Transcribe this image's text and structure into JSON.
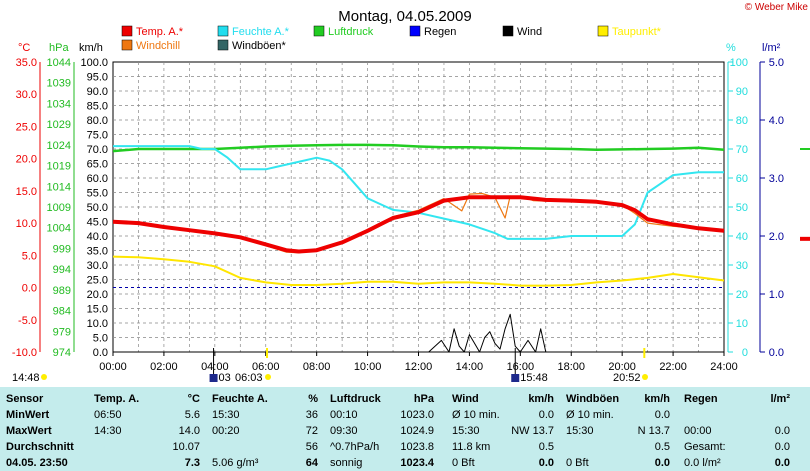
{
  "title": "Montag, 04.05.2009",
  "copyright": "© Weber Mike",
  "legend": [
    {
      "name": "Temp. A.*",
      "color": "#ee0000"
    },
    {
      "name": "Feuchte A.*",
      "color": "#22ddee"
    },
    {
      "name": "Luftdruck",
      "color": "#22cc22"
    },
    {
      "name": "Regen",
      "color": "#0000ff"
    },
    {
      "name": "Wind",
      "color": "#000000"
    },
    {
      "name": "Taupunkt*",
      "color": "#ffee00"
    },
    {
      "name": "Windchill",
      "color": "#ee7711"
    },
    {
      "name": "Windböen*",
      "color": "#336666"
    }
  ],
  "axes": {
    "temp": {
      "unit": "°C",
      "ticks": [
        "35.0",
        "30.0",
        "25.0",
        "20.0",
        "15.0",
        "10.0",
        "5.0",
        "0.0",
        "-5.0",
        "-10.0"
      ],
      "color": "#ee0000"
    },
    "pressure": {
      "unit": "hPa",
      "ticks": [
        "1044",
        "1039",
        "1034",
        "1029",
        "1024",
        "1019",
        "1014",
        "1009",
        "1004",
        "999",
        "994",
        "989",
        "984",
        "979",
        "974"
      ],
      "color": "#22bb22"
    },
    "wind": {
      "unit": "km/h",
      "ticks": [
        "100.0",
        "95.0",
        "90.0",
        "85.0",
        "80.0",
        "75.0",
        "70.0",
        "65.0",
        "60.0",
        "55.0",
        "50.0",
        "45.0",
        "40.0",
        "35.0",
        "30.0",
        "25.0",
        "20.0",
        "15.0",
        "10.0",
        "5.0",
        "0.0"
      ],
      "color": "#000000"
    },
    "humidity": {
      "unit": "%",
      "ticks": [
        "100",
        "90",
        "80",
        "70",
        "60",
        "50",
        "40",
        "30",
        "20",
        "10",
        "0"
      ],
      "color": "#22dddd"
    },
    "rain": {
      "unit": "l/m²",
      "ticks": [
        "5.0",
        "4.0",
        "3.0",
        "2.0",
        "1.0",
        "0.0"
      ],
      "color": "#000099"
    },
    "time": {
      "ticks": [
        "00:00",
        "02:00",
        "04:00",
        "06:00",
        "08:00",
        "10:00",
        "12:00",
        "14:00",
        "16:00",
        "18:00",
        "20:00",
        "22:00",
        "24:00"
      ]
    }
  },
  "events": {
    "left_time": "14:48",
    "moon": "03",
    "sunrise": "06:03",
    "moonset": "15:48",
    "sunset": "20:52"
  },
  "chart_data": {
    "type": "line",
    "title": "Montag, 04.05.2009",
    "xlabel": "",
    "xlim": [
      0,
      24
    ],
    "series": [
      {
        "name": "Temp. A.*",
        "axis": "°C",
        "x": [
          0,
          1,
          2,
          3,
          4,
          5,
          6,
          6.8,
          7.3,
          8,
          9,
          10,
          11,
          12,
          13,
          14,
          15,
          16,
          17,
          18,
          19,
          20,
          20.5,
          21,
          22,
          23,
          24
        ],
        "values": [
          10.2,
          10.0,
          9.4,
          8.9,
          8.4,
          7.8,
          6.7,
          5.8,
          5.6,
          5.8,
          7.0,
          8.8,
          10.8,
          11.7,
          13.5,
          14.0,
          14.0,
          14.0,
          13.6,
          13.5,
          13.3,
          12.8,
          12.0,
          10.6,
          9.8,
          9.2,
          8.8
        ]
      },
      {
        "name": "Windchill",
        "axis": "°C",
        "x": [
          0,
          1,
          2,
          3,
          4,
          5,
          6,
          6.8,
          7.3,
          8,
          9,
          10,
          11,
          12,
          13,
          13.7,
          14,
          14.5,
          15,
          15.4,
          15.6,
          15.8,
          16,
          16.5,
          17,
          18,
          19,
          20,
          20.5,
          21,
          22,
          23,
          24
        ],
        "values": [
          10.2,
          10.0,
          9.4,
          8.9,
          8.4,
          7.8,
          6.5,
          5.5,
          5.4,
          5.8,
          7.2,
          9.0,
          11.0,
          12.0,
          13.8,
          11.9,
          14.5,
          14.6,
          14.0,
          10.8,
          14.2,
          14.0,
          14.2,
          13.5,
          13.4,
          13.5,
          13.3,
          12.8,
          11.5,
          10.0,
          9.5,
          9.2,
          8.8
        ]
      },
      {
        "name": "Feuchte A.*",
        "axis": "%",
        "x": [
          0,
          1,
          2,
          3,
          3.5,
          4,
          4.5,
          5,
          5.5,
          6,
          6.5,
          7,
          7.5,
          8,
          8.5,
          9,
          9.5,
          10,
          10.5,
          11,
          12,
          13,
          14,
          15,
          15.5,
          16,
          17,
          18,
          19,
          20,
          20.5,
          21,
          21.5,
          22,
          23,
          24
        ],
        "values": [
          71,
          71,
          71,
          71,
          70,
          70,
          67,
          63,
          63,
          63,
          64,
          65,
          66,
          67,
          66,
          63,
          58,
          53,
          51,
          49,
          48,
          46,
          44,
          41,
          39,
          39,
          39,
          40,
          40,
          40,
          44,
          55,
          58,
          61,
          62,
          62
        ]
      },
      {
        "name": "Luftdruck",
        "axis": "hPa",
        "x": [
          0,
          1,
          2,
          3,
          4,
          5,
          6,
          7,
          8,
          9,
          10,
          11,
          12,
          13,
          14,
          15,
          16,
          17,
          18,
          19,
          20,
          21,
          22,
          23,
          24
        ],
        "values": [
          1022.5,
          1023.0,
          1023.0,
          1023.0,
          1023.0,
          1023.3,
          1023.6,
          1023.8,
          1023.9,
          1024.0,
          1024.0,
          1023.9,
          1023.6,
          1023.4,
          1023.4,
          1023.3,
          1023.2,
          1023.1,
          1023.0,
          1022.8,
          1022.9,
          1023.0,
          1023.1,
          1023.3,
          1022.8
        ]
      },
      {
        "name": "Taupunkt*",
        "axis": "°C",
        "x": [
          0,
          1,
          2,
          3,
          4,
          5,
          6,
          7,
          8,
          9,
          10,
          11,
          12,
          13,
          14,
          15,
          16,
          17,
          18,
          19,
          20,
          21,
          22,
          23,
          24
        ],
        "values": [
          4.8,
          4.7,
          4.4,
          4.0,
          3.3,
          1.5,
          0.8,
          0.4,
          0.4,
          0.6,
          0.9,
          0.9,
          0.6,
          0.8,
          0.8,
          0.6,
          0.3,
          0.3,
          0.4,
          0.8,
          1.1,
          1.5,
          2.1,
          1.6,
          1.1
        ]
      },
      {
        "name": "Wind",
        "axis": "km/h",
        "x": [
          0,
          12.4,
          12.9,
          13.2,
          13.4,
          13.6,
          13.8,
          14.0,
          14.2,
          14.4,
          14.6,
          14.8,
          15.0,
          15.2,
          15.4,
          15.6,
          15.8,
          16.0,
          16.3,
          16.6,
          16.8,
          17.0,
          24
        ],
        "values": [
          0,
          0,
          4,
          0,
          8,
          2,
          0,
          6,
          3,
          0,
          5,
          7,
          3,
          1,
          8,
          13,
          2,
          0,
          4,
          0,
          8,
          0,
          0
        ]
      },
      {
        "name": "Regen",
        "axis": "l/m²",
        "x": [
          0,
          24
        ],
        "values": [
          0,
          0
        ]
      }
    ],
    "reference_line": {
      "axis": "°C",
      "value": 0.0
    },
    "ylim_temp": [
      -10,
      35
    ],
    "ylim_humidity": [
      0,
      100
    ],
    "ylim_pressure": [
      974,
      1044
    ],
    "ylim_wind": [
      0,
      100
    ],
    "ylim_rain": [
      0,
      5
    ],
    "grid": true,
    "legend_position": "top"
  },
  "table": {
    "headers": [
      "Sensor",
      "Temp. A.",
      "°C",
      "Feuchte A.",
      "%",
      "Luftdruck",
      "hPa",
      "Wind",
      "km/h",
      "Windböen",
      "km/h",
      "Regen",
      "l/m²"
    ],
    "rows": [
      {
        "label": "MinWert",
        "cells": [
          "06:50",
          "5.6",
          "15:30",
          "36",
          "00:10",
          "1023.0",
          "Ø 10 min.",
          "0.0",
          "Ø 10 min.",
          "0.0",
          "",
          ""
        ]
      },
      {
        "label": "MaxWert",
        "cells": [
          "14:30",
          "14.0",
          "00:20",
          "72",
          "09:30",
          "1024.9",
          "15:30",
          "NW 13.7",
          "15:30",
          "N 13.7",
          "00:00",
          "0.0"
        ]
      },
      {
        "label": "Durchschnitt",
        "cells": [
          "",
          "10.07",
          "",
          "56",
          "^0.7hPa/h",
          "1023.8",
          "11.8 km",
          "0.5",
          "",
          "0.5",
          "Gesamt:",
          "0.0"
        ]
      },
      {
        "label": "04.05. 23:50",
        "cells": [
          "",
          "7.3",
          "5.06 g/m³",
          "64",
          "sonnig",
          "1023.4",
          "0 Bft",
          "0.0",
          "0 Bft",
          "0.0",
          "0.0 l/m²",
          "0.0"
        ]
      }
    ]
  }
}
